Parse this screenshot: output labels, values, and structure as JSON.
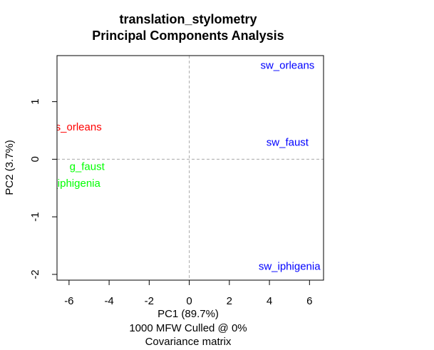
{
  "chart_data": {
    "type": "scatter",
    "title": "translation_stylometry",
    "subtitle": "Principal Components Analysis",
    "xlabel": "PC1 (89.7%)",
    "ylabel": "PC2 (3.7%)",
    "caption_lines": [
      "1000 MFW  Culled @ 0%",
      "Covariance matrix"
    ],
    "xlim": [
      -6.6,
      6.7
    ],
    "ylim": [
      -2.1,
      1.8
    ],
    "x_ticks": [
      -6,
      -4,
      -2,
      0,
      2,
      4,
      6
    ],
    "y_ticks": [
      -2,
      -1,
      0,
      1
    ],
    "grid": false,
    "reference_lines": {
      "x": 0,
      "y": 0
    },
    "points": [
      {
        "label": "fs_orleans",
        "x": -5.6,
        "y": 0.55,
        "color": "#ff0000"
      },
      {
        "label": "g_faust",
        "x": -5.1,
        "y": -0.14,
        "color": "#00ff00"
      },
      {
        "label": "g_iphigenia",
        "x": -5.8,
        "y": -0.43,
        "color": "#00ff00"
      },
      {
        "label": "sw_orleans",
        "x": 4.9,
        "y": 1.62,
        "color": "#0000ff"
      },
      {
        "label": "sw_faust",
        "x": 4.9,
        "y": 0.28,
        "color": "#0000ff"
      },
      {
        "label": "sw_iphigenia",
        "x": 5.0,
        "y": -1.87,
        "color": "#0000ff"
      }
    ]
  }
}
